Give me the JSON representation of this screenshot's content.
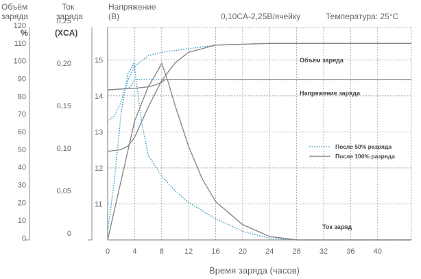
{
  "chart_data": {
    "type": "line",
    "header": {
      "capacity_axis_title": [
        "Объём",
        "заряда"
      ],
      "current_axis_title": [
        "Ток",
        "заряда"
      ],
      "voltage_axis_title": [
        "Напряжение",
        "(В)"
      ],
      "test_condition": "0,10CA-2,25В/ячейку",
      "temperature": "Температура: 25°C"
    },
    "x_axis": {
      "label": "Время заряда (часов)",
      "range": [
        0,
        45
      ],
      "ticks": [
        "0",
        "4",
        "8",
        "12",
        "16",
        "20",
        "24",
        "28",
        "32",
        "36",
        "40"
      ]
    },
    "capacity_axis": {
      "unit": "%",
      "range": [
        0,
        120
      ],
      "ticks": [
        "0",
        "10",
        "20",
        "30",
        "40",
        "50",
        "60",
        "70",
        "80",
        "90",
        "100",
        "110",
        "120"
      ]
    },
    "current_axis": {
      "unit": "(XCA)",
      "range": [
        0,
        0.25
      ],
      "ticks": [
        "0",
        "0,05",
        "0,10",
        "0,15",
        "0,20",
        "0,25"
      ]
    },
    "voltage_axis": {
      "range": [
        10,
        15.9
      ],
      "ticks": [
        "11",
        "12",
        "13",
        "14",
        "15"
      ]
    },
    "annotations": {
      "capacity": "Объём заряда",
      "voltage": "Напряжение заряда",
      "current": "Ток заряд"
    },
    "legend": {
      "position": "right",
      "entries": [
        {
          "name": "После 50% разряда",
          "style": "dotted",
          "color": "#3a9ec4"
        },
        {
          "name": "После 100% разряда",
          "style": "solid",
          "color": "#888888"
        }
      ]
    },
    "grid": true,
    "series": [
      {
        "name": "После 50% разряда",
        "quantity": "voltage",
        "axis": "voltage",
        "x": [
          0,
          1,
          2,
          3,
          3.6,
          4,
          8,
          45
        ],
        "y": [
          14.15,
          14.17,
          14.19,
          14.21,
          14.3,
          14.45,
          14.45,
          14.45
        ]
      },
      {
        "name": "После 100% разряда",
        "quantity": "voltage",
        "axis": "voltage",
        "x": [
          0,
          2,
          4,
          6,
          7,
          8,
          8.5,
          45
        ],
        "y": [
          14.17,
          14.19,
          14.21,
          14.25,
          14.3,
          14.38,
          14.45,
          14.45
        ]
      },
      {
        "name": "После 50% разряда",
        "quantity": "capacity",
        "axis": "capacity",
        "x": [
          0,
          1,
          2,
          3,
          4,
          6,
          8,
          10,
          12,
          16,
          20,
          24,
          30,
          36,
          45
        ],
        "y": [
          67,
          70,
          78,
          90,
          98,
          104,
          106,
          107,
          108,
          110,
          110.5,
          111,
          111,
          111,
          111
        ]
      },
      {
        "name": "После 100% разряда",
        "quantity": "capacity",
        "axis": "capacity",
        "x": [
          0,
          2,
          3,
          4,
          6,
          8,
          10,
          12,
          16,
          20,
          24,
          30,
          36,
          45
        ],
        "y": [
          50,
          51,
          53,
          58,
          75,
          90,
          100,
          106,
          110,
          110.5,
          111,
          111,
          111,
          111
        ]
      },
      {
        "name": "После 50% разряда",
        "quantity": "current",
        "axis": "current",
        "x": [
          0,
          1,
          2,
          3,
          3.9,
          5,
          6,
          8,
          10,
          12,
          16,
          20,
          24,
          28,
          32,
          45
        ],
        "y": [
          0.01,
          0.07,
          0.15,
          0.195,
          0.208,
          0.14,
          0.1,
          0.075,
          0.058,
          0.044,
          0.025,
          0.01,
          0.002,
          0.0,
          0.0,
          0.0
        ]
      },
      {
        "name": "После 100% разряда",
        "quantity": "current",
        "axis": "current",
        "x": [
          0,
          2,
          4,
          6,
          7.5,
          8,
          9,
          10,
          12,
          14,
          16,
          20,
          24,
          28,
          32,
          45
        ],
        "y": [
          0.0,
          0.07,
          0.14,
          0.18,
          0.2,
          0.208,
          0.185,
          0.158,
          0.11,
          0.072,
          0.045,
          0.018,
          0.004,
          0.0,
          0.0,
          0.0
        ]
      }
    ]
  }
}
